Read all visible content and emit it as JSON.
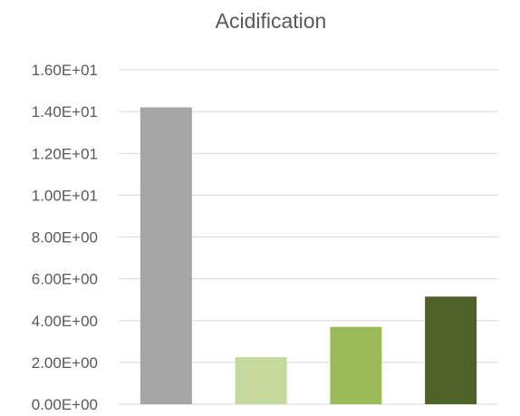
{
  "chart_data": {
    "type": "bar",
    "title": "Acidification",
    "xlabel": "",
    "ylabel": "",
    "categories": [
      "",
      "",
      "",
      ""
    ],
    "values": [
      14.2,
      2.25,
      3.7,
      5.15
    ],
    "colors": [
      "#a5a5a5",
      "#c5d99c",
      "#9bbb59",
      "#4f6228"
    ],
    "ylim": [
      0,
      16
    ],
    "yticks": [
      0,
      2,
      4,
      6,
      8,
      10,
      12,
      14,
      16
    ],
    "ytick_labels": [
      "0.00E+00",
      "2.00E+00",
      "4.00E+00",
      "6.00E+00",
      "8.00E+00",
      "1.00E+01",
      "1.20E+01",
      "1.40E+01",
      "1.60E+01"
    ],
    "grid": true,
    "legend": "none"
  }
}
